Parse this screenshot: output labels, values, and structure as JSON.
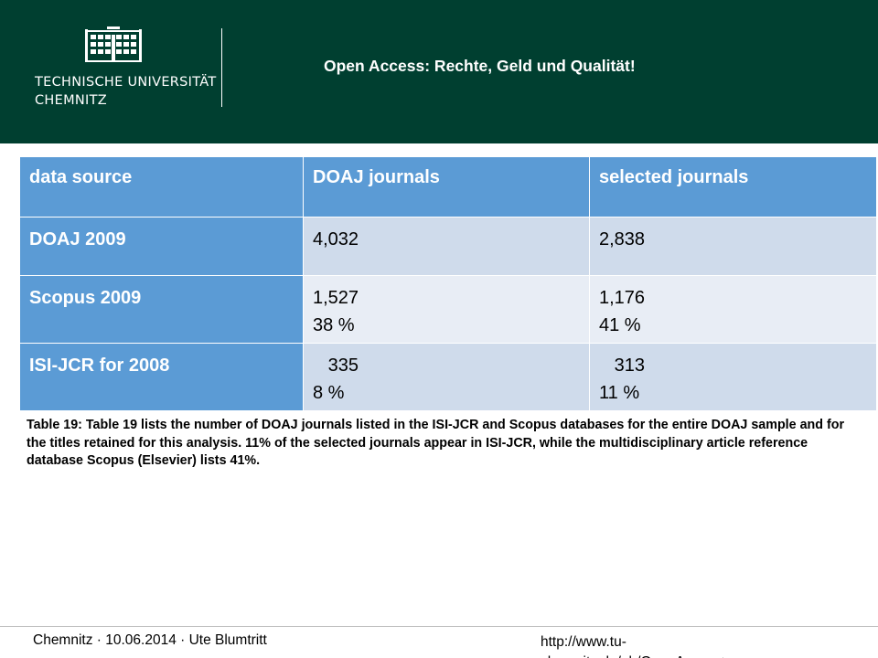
{
  "header": {
    "university_line1": "TECHNISCHE UNIVERSITÄT",
    "university_line2": "CHEMNITZ",
    "logo_icon": "tu-chemnitz-building-logo-icon",
    "title": "Open Access: Rechte, Geld und Qualität!",
    "background_color": "#003f30"
  },
  "table": {
    "columns": [
      "data source",
      "DOAJ journals",
      "selected journals"
    ],
    "rows": [
      {
        "source": "DOAJ 2009",
        "doaj": [
          "4,032"
        ],
        "selected": [
          "2,838"
        ]
      },
      {
        "source": "Scopus 2009",
        "doaj": [
          "1,527",
          "38 %"
        ],
        "selected": [
          "1,176",
          "41 %"
        ]
      },
      {
        "source": "ISI-JCR for 2008",
        "doaj": [
          "   335",
          "8 %"
        ],
        "selected": [
          "   313",
          "11 %"
        ]
      }
    ],
    "header_color": "#5b9bd5",
    "row_colors": [
      "#cfdbeb",
      "#e8edf5"
    ]
  },
  "caption": "Table 19: Table 19 lists the number of DOAJ journals listed in the ISI-JCR and Scopus databases for the entire DOAJ sample and for the titles retained for this analysis. 11% of the selected journals appear in ISI-JCR, while the multidisciplinary article reference database Scopus (Elsevier) lists 41%.",
  "footer": {
    "left": "Chemnitz · 10.06.2014 · Ute Blumtritt",
    "url": "http://www.tu-chemnitz.de/ub/OpenAccess/index.html"
  }
}
